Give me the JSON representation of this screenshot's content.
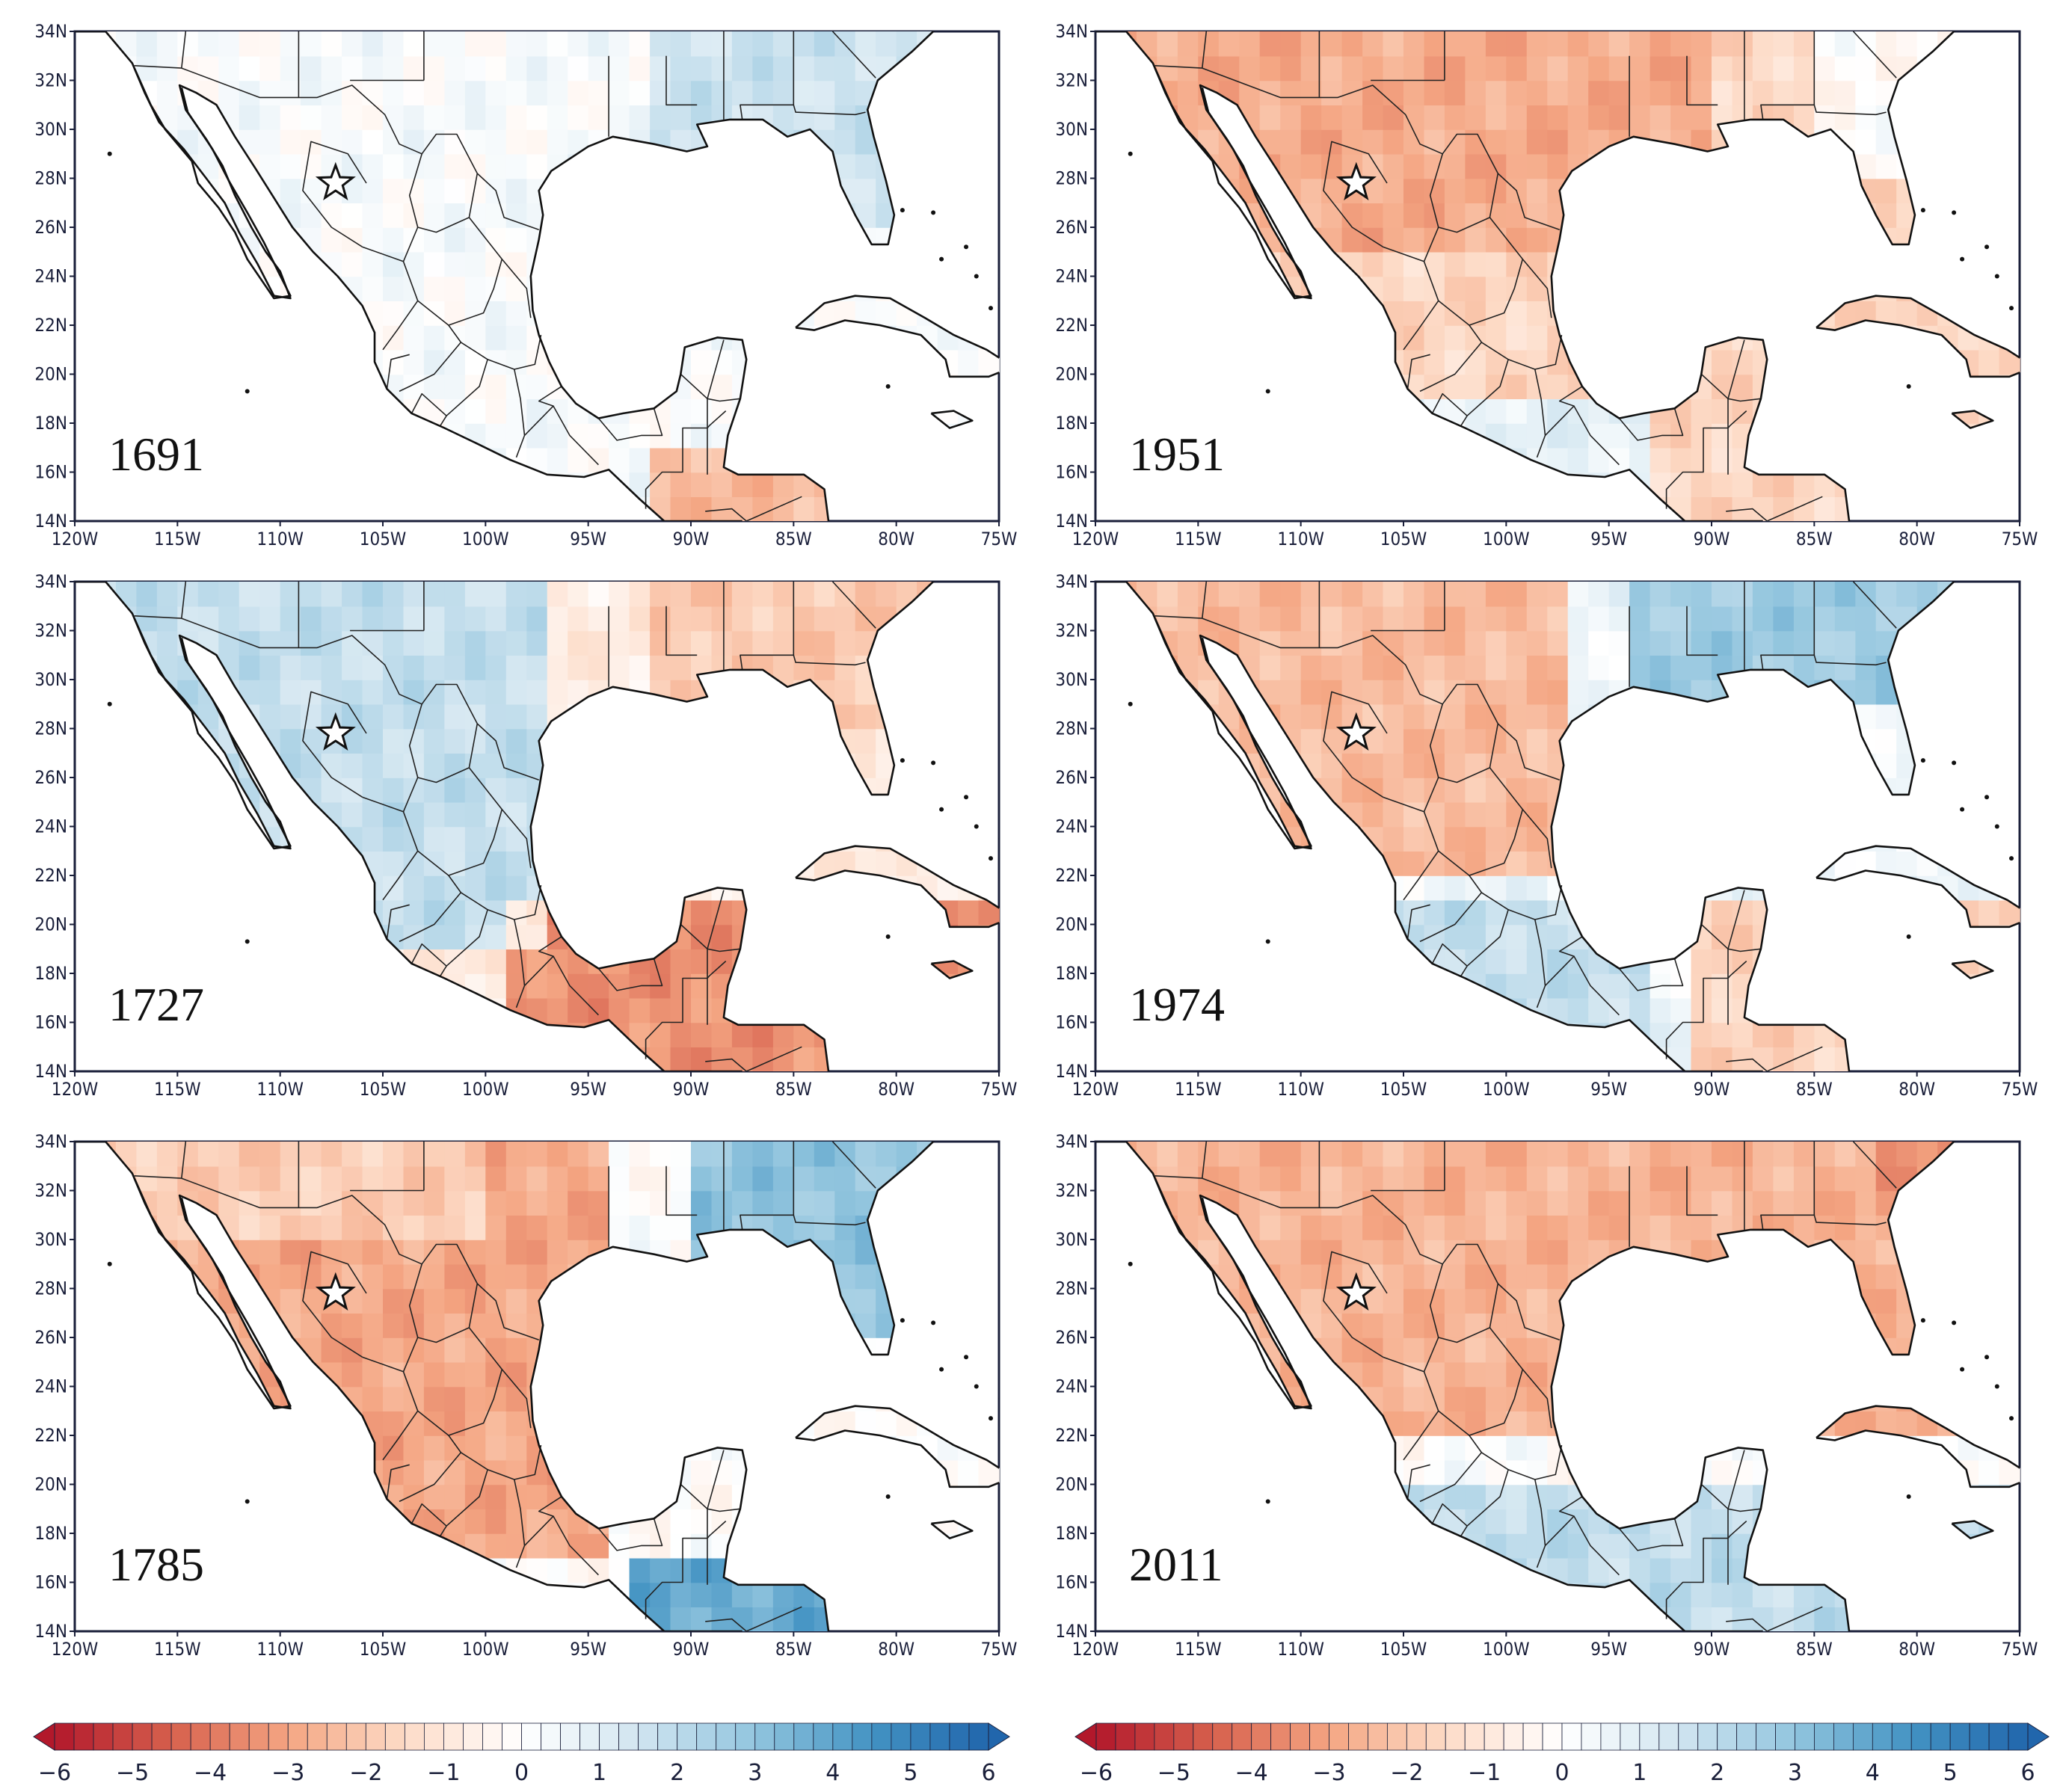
{
  "figure": {
    "lon_ticks": [
      "120W",
      "115W",
      "110W",
      "105W",
      "100W",
      "95W",
      "90W",
      "85W",
      "80W",
      "75W"
    ],
    "lat_ticks": [
      "34N",
      "32N",
      "30N",
      "28N",
      "26N",
      "24N",
      "22N",
      "20N",
      "18N",
      "16N",
      "14N"
    ],
    "extent": {
      "lon_min": -120,
      "lon_max": -75,
      "lat_min": 14,
      "lat_max": 34
    },
    "colorbar_labels": [
      "−6",
      "−5",
      "−4",
      "−3",
      "−2",
      "−1",
      "0",
      "1",
      "2",
      "3",
      "4",
      "5",
      "6"
    ],
    "colorbar_range": [
      -6,
      6
    ],
    "colorbar_colors": [
      "#b2182b",
      "#d6604d",
      "#f4a582",
      "#fddbc7",
      "#ffffff",
      "#d1e5f0",
      "#92c5de",
      "#4393c3",
      "#2166ac"
    ],
    "star_location": {
      "lon": -107.3,
      "lat": 27.8
    },
    "panels": [
      {
        "year": "1691",
        "pattern": "mixed"
      },
      {
        "year": "1951",
        "pattern": "dry"
      },
      {
        "year": "1727",
        "pattern": "wet_north_dry_south"
      },
      {
        "year": "1974",
        "pattern": "dry_west_wet_east"
      },
      {
        "year": "1785",
        "pattern": "dry_mexico_wet_southeast"
      },
      {
        "year": "2011",
        "pattern": "dry_north_wet_south"
      }
    ]
  }
}
